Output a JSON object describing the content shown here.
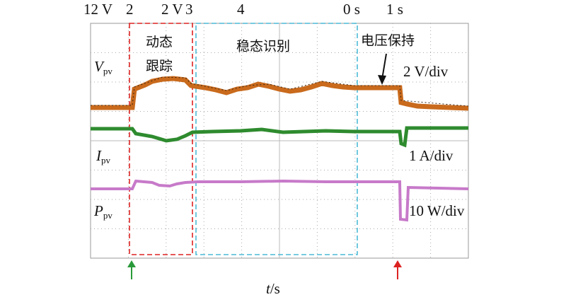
{
  "header_labels": [
    "12 V",
    "2",
    "2 V",
    "3",
    "4",
    "0 s",
    "1 s"
  ],
  "annotations": {
    "dynamic_line1": "动态",
    "dynamic_line2": "跟踪",
    "steady": "稳态识别",
    "hold": "电压保持"
  },
  "traces": {
    "voltage": {
      "symbol": "V",
      "subscript": "pv",
      "scale": "2 V/div"
    },
    "current": {
      "symbol": "I",
      "subscript": "pv",
      "scale": "1 A/div"
    },
    "power": {
      "symbol": "P",
      "subscript": "pv",
      "scale": "10 W/div"
    }
  },
  "x_axis_label": {
    "variable": "t",
    "unit": "/s"
  }
}
